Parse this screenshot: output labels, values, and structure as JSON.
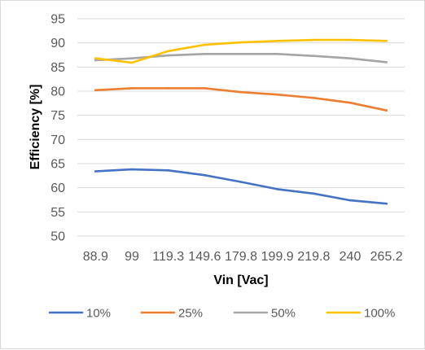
{
  "chart_data": {
    "type": "line",
    "title": "",
    "xlabel": "Vin [Vac]",
    "ylabel": "Efficiency [%]",
    "categories": [
      "88.9",
      "99",
      "119.3",
      "149.6",
      "179.8",
      "199.9",
      "219.8",
      "240",
      "265.2"
    ],
    "y_ticks": [
      "50",
      "55",
      "60",
      "65",
      "70",
      "75",
      "80",
      "85",
      "90",
      "95"
    ],
    "ylim": [
      50,
      95
    ],
    "grid": true,
    "legend_position": "bottom",
    "series": [
      {
        "name": "10%",
        "color": "#4472C4",
        "values": [
          63.4,
          63.8,
          63.6,
          62.6,
          61.2,
          59.7,
          58.8,
          57.4,
          56.7
        ]
      },
      {
        "name": "25%",
        "color": "#ED7D31",
        "values": [
          80.2,
          80.6,
          80.6,
          80.6,
          79.8,
          79.3,
          78.6,
          77.6,
          76.0
        ]
      },
      {
        "name": "50%",
        "color": "#A5A5A5",
        "values": [
          86.4,
          86.8,
          87.4,
          87.7,
          87.7,
          87.7,
          87.3,
          86.8,
          86.0
        ]
      },
      {
        "name": "100%",
        "color": "#FFC000",
        "values": [
          86.8,
          85.9,
          88.3,
          89.6,
          90.1,
          90.4,
          90.6,
          90.6,
          90.4
        ]
      }
    ]
  }
}
